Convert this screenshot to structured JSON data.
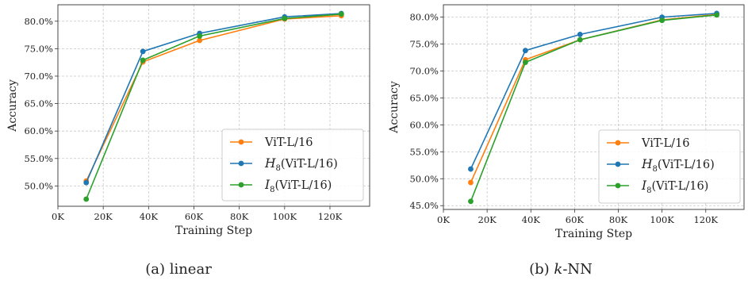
{
  "chart_data": [
    {
      "type": "line",
      "caption": "(a) linear",
      "xlabel": "Training Step",
      "ylabel": "Accuracy",
      "xlim": [
        0,
        137500
      ],
      "ylim": [
        0.463,
        0.83
      ],
      "xticks": [
        0,
        20000,
        40000,
        60000,
        80000,
        100000,
        120000
      ],
      "xtick_labels": [
        "0K",
        "20K",
        "40K",
        "60K",
        "80K",
        "100K",
        "120K"
      ],
      "yticks": [
        0.5,
        0.55,
        0.6,
        0.65,
        0.7,
        0.75,
        0.8
      ],
      "ytick_labels": [
        "50.0%",
        "55.0%",
        "60.0%",
        "65.0%",
        "70.0%",
        "75.0%",
        "80.0%"
      ],
      "grid": true,
      "legend_position": "lower-right",
      "x": [
        12500,
        37500,
        62500,
        100000,
        125000
      ],
      "series": [
        {
          "name": "ViT-L/16",
          "color": "#ff7f0e",
          "values": [
            0.509,
            0.726,
            0.765,
            0.804,
            0.81
          ]
        },
        {
          "name": "H8(ViT-L/16)",
          "color": "#1f77b4",
          "values": [
            0.506,
            0.745,
            0.778,
            0.808,
            0.814
          ]
        },
        {
          "name": "I8(ViT-L/16)",
          "color": "#2ca02c",
          "values": [
            0.476,
            0.729,
            0.773,
            0.805,
            0.813
          ]
        }
      ]
    },
    {
      "type": "line",
      "caption": "(b) k-NN",
      "xlabel": "Training Step",
      "ylabel": "Accuracy",
      "xlim": [
        0,
        137500
      ],
      "ylim": [
        0.443,
        0.823
      ],
      "xticks": [
        0,
        20000,
        40000,
        60000,
        80000,
        100000,
        120000
      ],
      "xtick_labels": [
        "0K",
        "20K",
        "40K",
        "60K",
        "80K",
        "100K",
        "120K"
      ],
      "yticks": [
        0.45,
        0.5,
        0.55,
        0.6,
        0.65,
        0.7,
        0.75,
        0.8
      ],
      "ytick_labels": [
        "45.0%",
        "50.0%",
        "55.0%",
        "60.0%",
        "65.0%",
        "70.0%",
        "75.0%",
        "80.0%"
      ],
      "grid": true,
      "legend_position": "lower-right",
      "x": [
        12500,
        37500,
        62500,
        100000,
        125000
      ],
      "series": [
        {
          "name": "ViT-L/16",
          "color": "#ff7f0e",
          "values": [
            0.493,
            0.721,
            0.758,
            0.795,
            0.805
          ]
        },
        {
          "name": "H8(ViT-L/16)",
          "color": "#1f77b4",
          "values": [
            0.518,
            0.738,
            0.768,
            0.8,
            0.807
          ]
        },
        {
          "name": "I8(ViT-L/16)",
          "color": "#2ca02c",
          "values": [
            0.458,
            0.716,
            0.758,
            0.794,
            0.804
          ]
        }
      ]
    }
  ]
}
